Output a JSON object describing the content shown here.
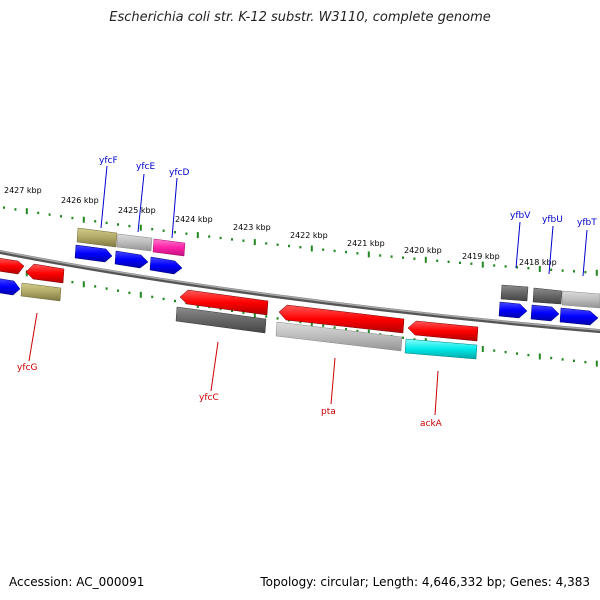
{
  "title": "Escherichia coli str. K-12 substr. W3110, complete genome",
  "footer": {
    "accession": "Accession: AC_000091",
    "summary": "Topology: circular; Length: 4,646,332 bp; Genes: 4,383"
  },
  "ruler": {
    "tick_labels": [
      "2427 kbp",
      "2426 kbp",
      "2425 kbp",
      "2424 kbp",
      "2423 kbp",
      "2422 kbp",
      "2421 kbp",
      "2420 kbp",
      "2419 kbp",
      "2418 kbp"
    ]
  },
  "gene_labels_top": [
    "yfcF",
    "yfcE",
    "yfcD",
    "yfbV",
    "yfbU",
    "yfbT"
  ],
  "gene_labels_bottom": [
    "yfcG",
    "yfcC",
    "pta",
    "ackA"
  ],
  "colors": {
    "top_label": "#0000cc",
    "bottom_label": "#cc0000",
    "ruler": "#228822",
    "gene_red": "#ff0000",
    "gene_blue": "#0000ff",
    "gene_olive": "#b0a866",
    "gene_dark_gray": "#6a6a6a",
    "gene_light_gray": "#b8b8b8",
    "gene_magenta": "#ff22aa",
    "gene_cyan": "#00e8e8",
    "backbone": "#777777"
  }
}
